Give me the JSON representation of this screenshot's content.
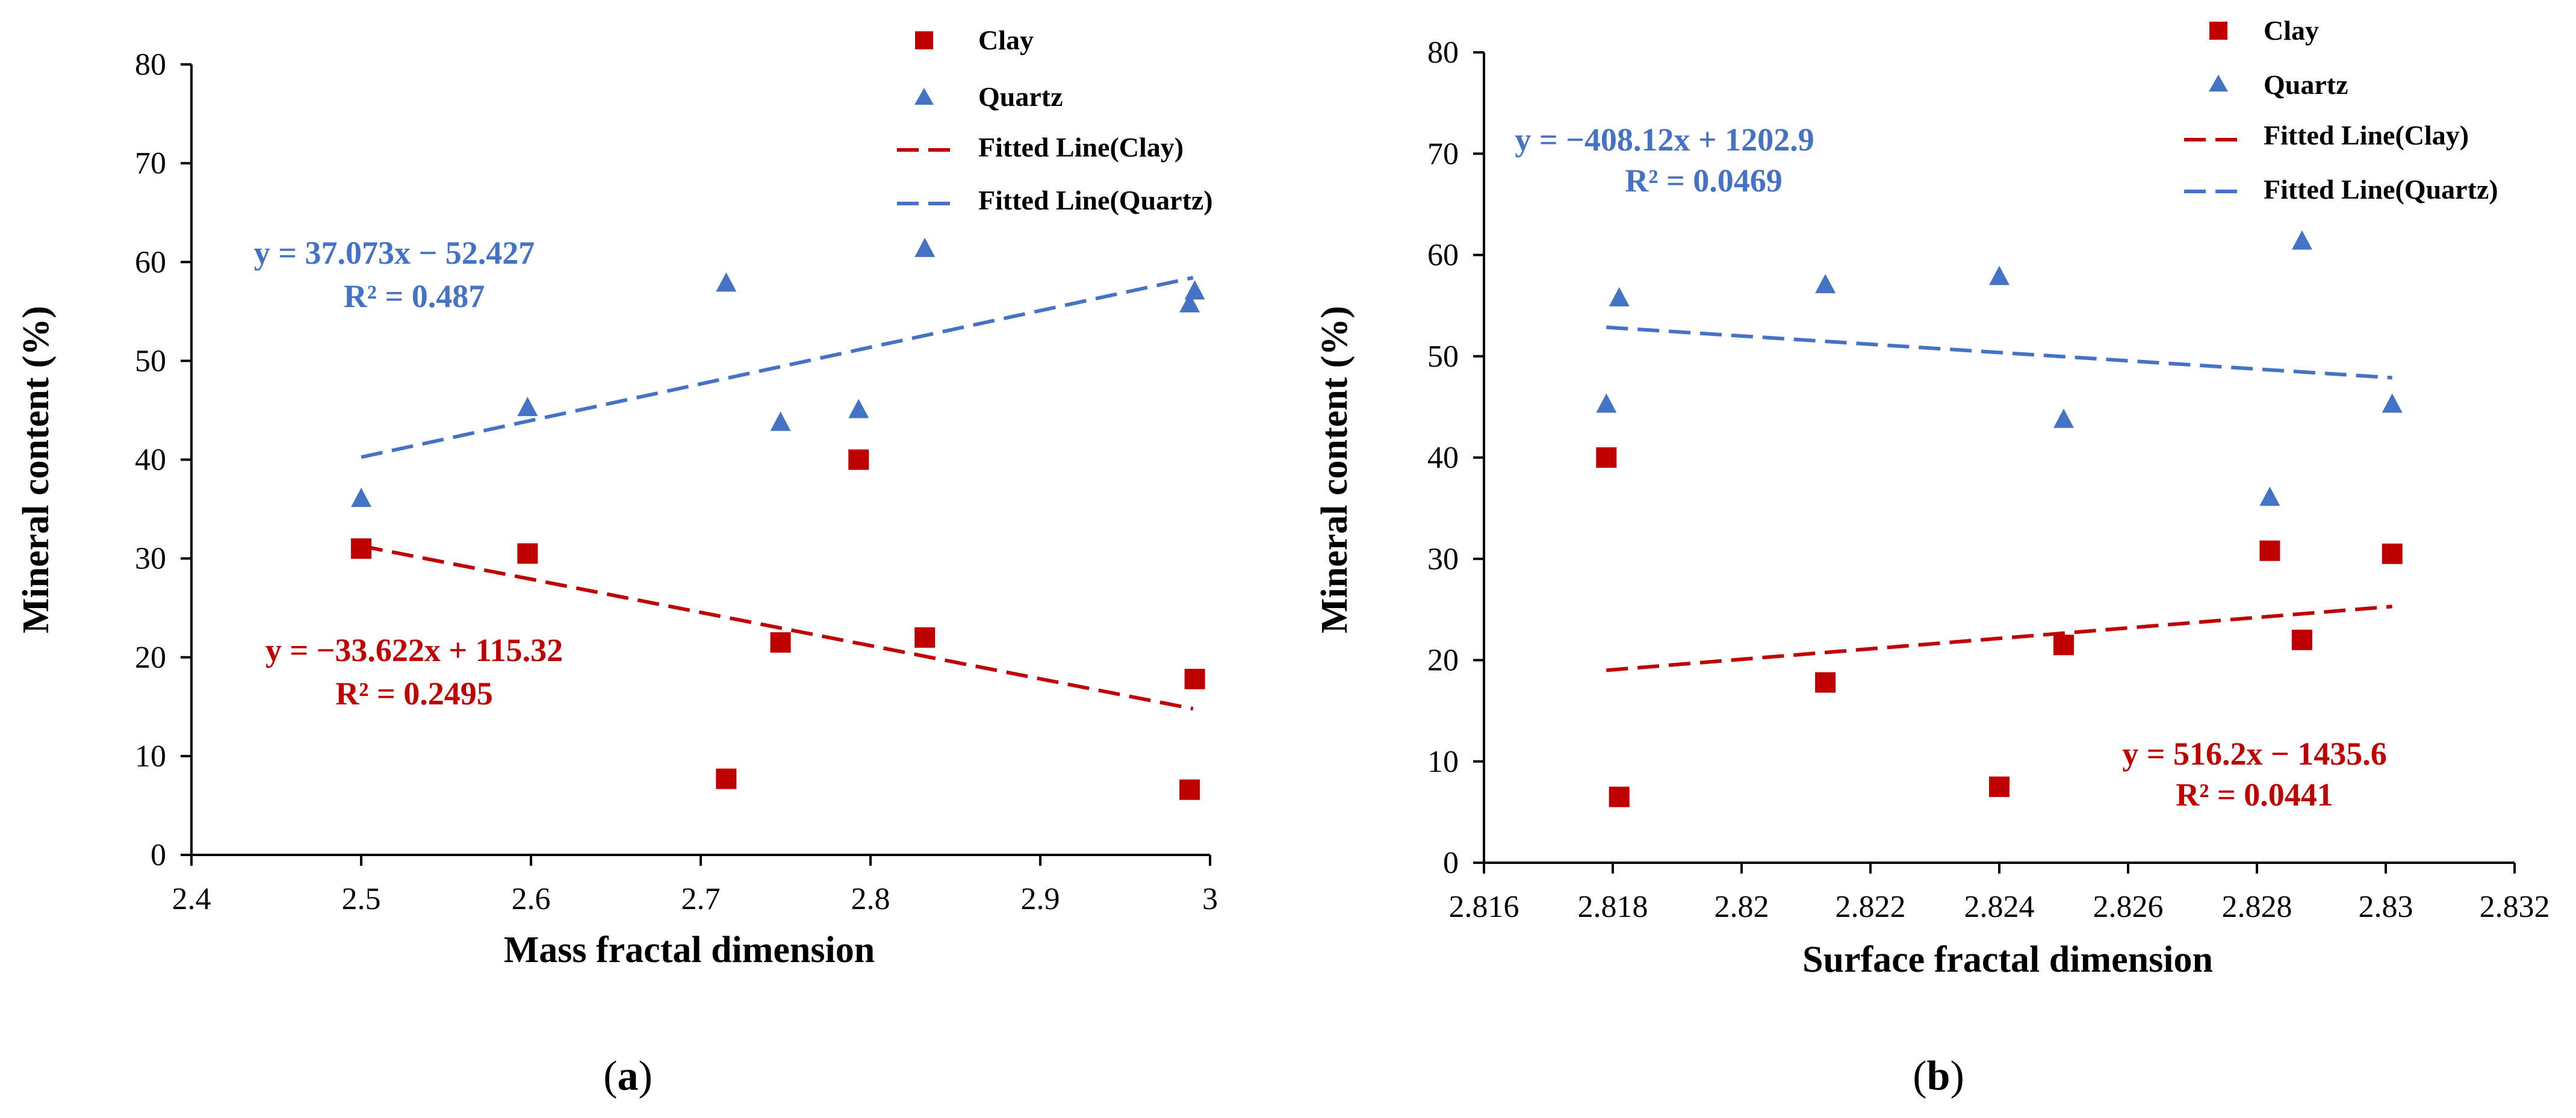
{
  "colors": {
    "clay": "#c00000",
    "quartz": "#4472c4",
    "axis": "#000000"
  },
  "chart_data": [
    {
      "type": "scatter",
      "panel_label": "a",
      "xlabel": "Mass fractal dimension",
      "ylabel": "Mineral content (%)",
      "xlim": [
        2.4,
        3.0
      ],
      "ylim": [
        0,
        80
      ],
      "xticks": [
        "2.4",
        "2.5",
        "2.6",
        "2.7",
        "2.8",
        "2.9",
        "3"
      ],
      "yticks": [
        "0",
        "10",
        "20",
        "30",
        "40",
        "50",
        "60",
        "70",
        "80"
      ],
      "grid": false,
      "legend_position": "top-right",
      "series": [
        {
          "name": "Clay",
          "key": "clay",
          "marker": "square",
          "points": [
            [
              2.5,
              31
            ],
            [
              2.598,
              30.5
            ],
            [
              2.715,
              7.7
            ],
            [
              2.747,
              21.5
            ],
            [
              2.793,
              40
            ],
            [
              2.832,
              22
            ],
            [
              2.988,
              6.6
            ],
            [
              2.991,
              17.8
            ]
          ]
        },
        {
          "name": "Quartz",
          "key": "quartz",
          "marker": "triangle",
          "points": [
            [
              2.5,
              36
            ],
            [
              2.598,
              45.2
            ],
            [
              2.715,
              57.8
            ],
            [
              2.747,
              43.7
            ],
            [
              2.793,
              45
            ],
            [
              2.832,
              61.3
            ],
            [
              2.988,
              55.7
            ],
            [
              2.991,
              57
            ]
          ]
        }
      ],
      "fits": [
        {
          "name": "Fitted Line(Clay)",
          "key": "clay",
          "slope": -33.622,
          "intercept": 115.32,
          "x_range": [
            2.5,
            2.99
          ],
          "equation": "y = −33.622x + 115.32",
          "r2": "R² = 0.2495"
        },
        {
          "name": "Fitted Line(Quartz)",
          "key": "quartz",
          "slope": 37.073,
          "intercept": -52.427,
          "x_range": [
            2.5,
            2.99
          ],
          "equation": "y = 37.073x − 52.427",
          "r2": "R² = 0.487"
        }
      ]
    },
    {
      "type": "scatter",
      "panel_label": "b",
      "xlabel": "Surface fractal dimension",
      "ylabel": "Mineral content (%)",
      "xlim": [
        2.816,
        2.832
      ],
      "ylim": [
        0,
        80
      ],
      "xticks": [
        "2.816",
        "2.818",
        "2.82",
        "2.822",
        "2.824",
        "2.826",
        "2.828",
        "2.83",
        "2.832"
      ],
      "yticks": [
        "0",
        "10",
        "20",
        "30",
        "40",
        "50",
        "60",
        "70",
        "80"
      ],
      "grid": false,
      "legend_position": "top-right",
      "series": [
        {
          "name": "Clay",
          "key": "clay",
          "marker": "square",
          "points": [
            [
              2.8179,
              40
            ],
            [
              2.8181,
              6.5
            ],
            [
              2.8213,
              17.8
            ],
            [
              2.824,
              7.5
            ],
            [
              2.825,
              21.5
            ],
            [
              2.8282,
              30.8
            ],
            [
              2.8287,
              22
            ],
            [
              2.8301,
              30.5
            ]
          ]
        },
        {
          "name": "Quartz",
          "key": "quartz",
          "marker": "triangle",
          "points": [
            [
              2.8179,
              45.2
            ],
            [
              2.8181,
              55.7
            ],
            [
              2.8213,
              57
            ],
            [
              2.824,
              57.8
            ],
            [
              2.825,
              43.7
            ],
            [
              2.8282,
              36
            ],
            [
              2.8287,
              61.3
            ],
            [
              2.8301,
              45.2
            ]
          ]
        }
      ],
      "fits": [
        {
          "name": "Fitted Line(Clay)",
          "key": "clay",
          "slope": 516.2,
          "intercept": -1435.6,
          "x_range": [
            2.8179,
            2.8301
          ],
          "equation": "y = 516.2x − 1435.6",
          "r2": "R² = 0.0441"
        },
        {
          "name": "Fitted Line(Quartz)",
          "key": "quartz",
          "slope": -408.12,
          "intercept": 1202.9,
          "x_range": [
            2.8179,
            2.8301
          ],
          "equation": "y = −408.12x + 1202.9",
          "r2": "R² = 0.0469"
        }
      ]
    }
  ]
}
